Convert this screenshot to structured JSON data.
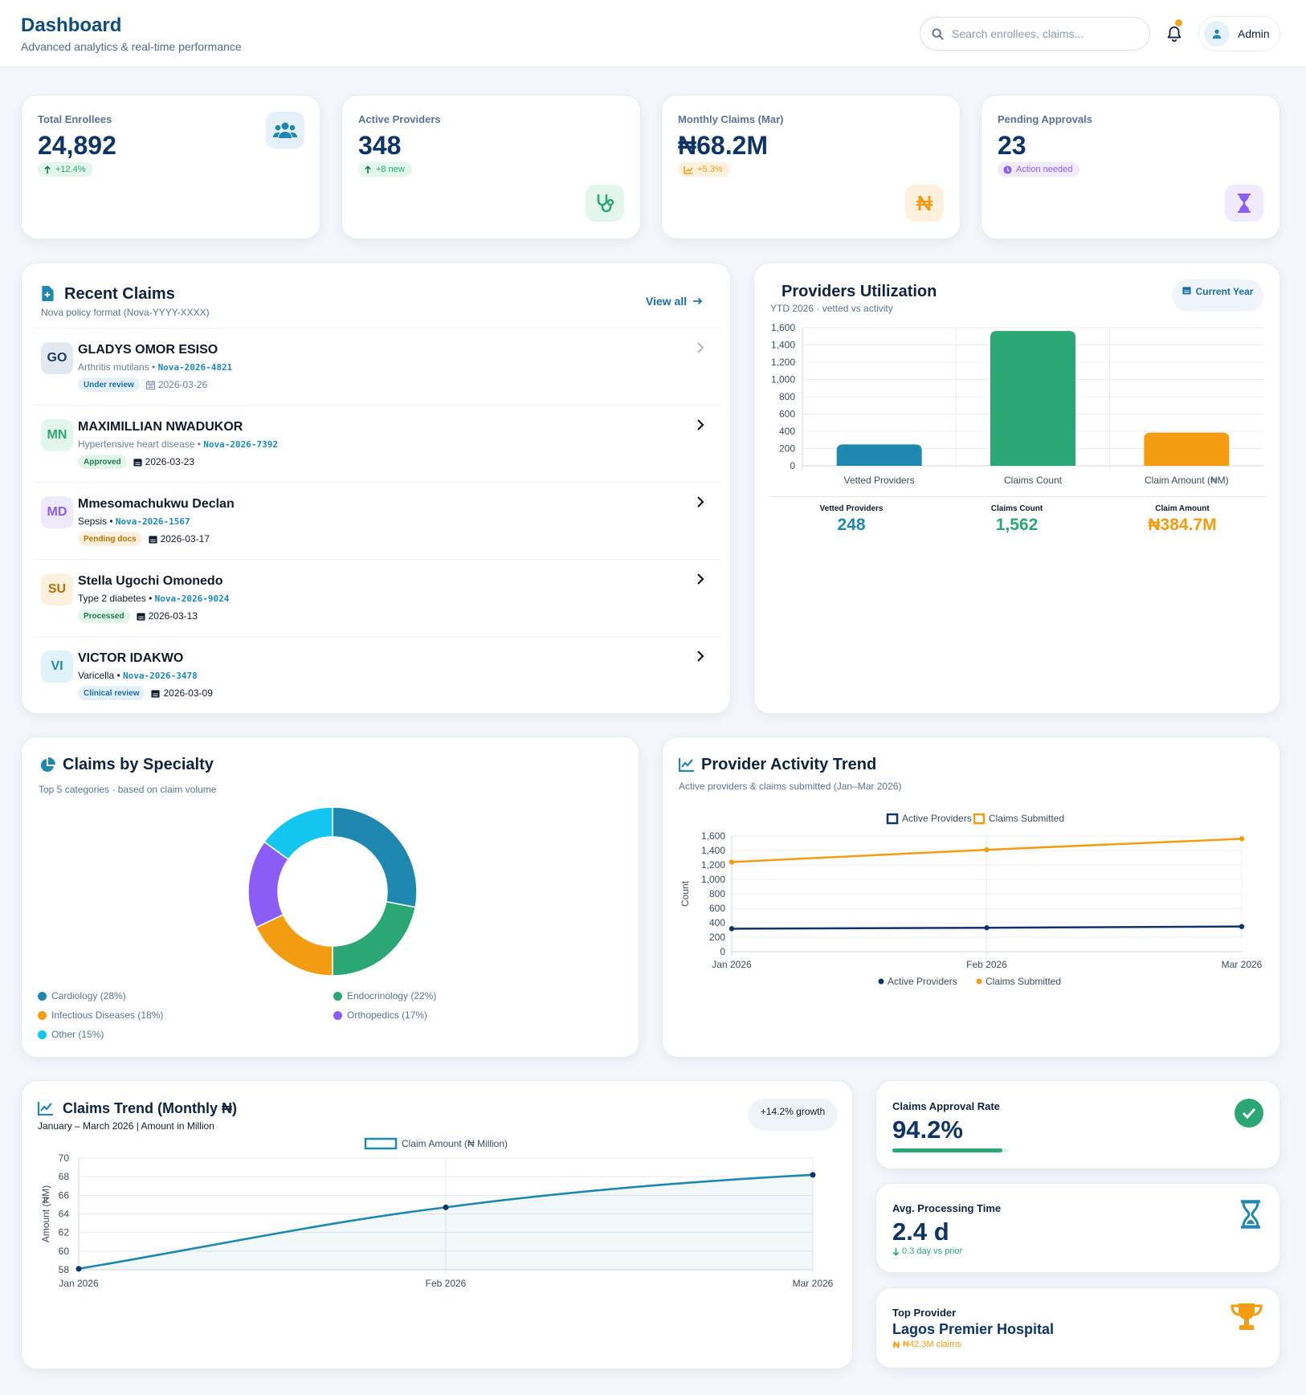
{
  "header": {
    "title": "Dashboard",
    "subtitle": "Advanced analytics & real-time performance",
    "search_placeholder": "Search enrollees, claims...",
    "user_label": "Admin"
  },
  "kpis": [
    {
      "label": "Total Enrollees",
      "value": "24,892",
      "badge": "+12.4%"
    },
    {
      "label": "Active Providers",
      "value": "348",
      "badge": "+8 new"
    },
    {
      "label": "Monthly Claims (Mar)",
      "value": "₦68.2M",
      "badge": "+5.3%"
    },
    {
      "label": "Pending Approvals",
      "value": "23",
      "badge": "Action needed"
    }
  ],
  "recent_claims": {
    "title": "Recent Claims",
    "subtitle": "Nova policy format (Nova-YYYY-XXXX)",
    "view_all": "View all",
    "items": [
      {
        "initials": "GO",
        "name": "GLADYS OMOR ESISO",
        "diagnosis": "Arthritis mutilans",
        "code": "Nova-2026-4821",
        "status": "Under review",
        "date": "2026-03-26"
      },
      {
        "initials": "MN",
        "name": "MAXIMILLIAN NWADUKOR",
        "diagnosis": "Hypertensive heart disease",
        "code": "Nova-2026-7392",
        "status": "Approved",
        "date": "2026-03-23"
      },
      {
        "initials": "MD",
        "name": "Mmesomachukwu Declan",
        "diagnosis": "Sepsis",
        "code": "Nova-2026-1567",
        "status": "Pending docs",
        "date": "2026-03-17"
      },
      {
        "initials": "SU",
        "name": "Stella Ugochi Omonedo",
        "diagnosis": "Type 2 diabetes",
        "code": "Nova-2026-9024",
        "status": "Processed",
        "date": "2026-03-13"
      },
      {
        "initials": "VI",
        "name": "VICTOR IDAKWO",
        "diagnosis": "Varicella",
        "code": "Nova-2026-3478",
        "status": "Clinical review",
        "date": "2026-03-09"
      }
    ]
  },
  "utilization": {
    "title": "Providers Utilization",
    "subtitle": "YTD 2026 · vetted vs activity",
    "filter_label": "Current Year",
    "stats": [
      {
        "label": "Vetted Providers",
        "value": "248",
        "color": "#1e88b0"
      },
      {
        "label": "Claims Count",
        "value": "1,562",
        "color": "#2aa775"
      },
      {
        "label": "Claim Amount",
        "value": "₦384.7M",
        "color": "#f39c12"
      }
    ]
  },
  "specialty": {
    "title": "Claims by Specialty",
    "subtitle": "Top 5 categories · based on claim volume",
    "legend": [
      {
        "label": "Cardiology (28%)",
        "color": "#1e88b0"
      },
      {
        "label": "Endocrinology (22%)",
        "color": "#2aa775"
      },
      {
        "label": "Infectious Diseases (18%)",
        "color": "#f39c12"
      },
      {
        "label": "Orthopedics (17%)",
        "color": "#8b5cf6"
      },
      {
        "label": "Other (15%)",
        "color": "#12c6f0"
      }
    ]
  },
  "activity": {
    "title": "Provider Activity Trend",
    "subtitle": "Active providers & claims submitted (Jan–Mar 2026)",
    "legend_bottom": [
      "Active Providers",
      "Claims Submitted"
    ]
  },
  "claims_trend": {
    "title": "Claims Trend (Monthly ₦)",
    "subtitle": "January – March 2026 | Amount in Million",
    "growth_badge": "+14.2% growth"
  },
  "side_cards": {
    "approval_label": "Claims Approval Rate",
    "approval_value": "94.2%",
    "approval_fraction": 0.942,
    "processing_label": "Avg. Processing Time",
    "processing_value": "2.4 d",
    "processing_delta": "0.3 day vs prior",
    "top_label": "Top Provider",
    "top_name": "Lagos Premier Hospital",
    "top_amount": "₦42.3M claims"
  },
  "chart_data": [
    {
      "type": "bar",
      "categories": [
        "Vetted Providers",
        "Claims Count",
        "Claim Amount (₦M)"
      ],
      "values": [
        248,
        1562,
        384.7
      ],
      "colors": [
        "#1e88b0",
        "#2aa775",
        "#f39c12"
      ],
      "ylim": [
        0,
        1600
      ],
      "yticks": [
        0,
        200,
        400,
        600,
        800,
        1000,
        1200,
        1400,
        1600
      ],
      "title": "Providers Utilization",
      "xlabel": "",
      "ylabel": ""
    },
    {
      "type": "pie",
      "categories": [
        "Cardiology",
        "Endocrinology",
        "Infectious Diseases",
        "Orthopedics",
        "Other"
      ],
      "values": [
        28,
        22,
        18,
        17,
        15
      ],
      "colors": [
        "#1e88b0",
        "#2aa775",
        "#f39c12",
        "#8b5cf6",
        "#12c6f0"
      ],
      "title": "Claims by Specialty"
    },
    {
      "type": "line",
      "title": "Provider Activity Trend",
      "x": [
        "Jan 2026",
        "Feb 2026",
        "Mar 2026"
      ],
      "series": [
        {
          "name": "Active Providers",
          "values": [
            318,
            331,
            348
          ],
          "color": "#0f3468"
        },
        {
          "name": "Claims Submitted",
          "values": [
            1240,
            1410,
            1562
          ],
          "color": "#f39c12"
        }
      ],
      "ylim": [
        0,
        1600
      ],
      "yticks": [
        0,
        200,
        400,
        600,
        800,
        1000,
        1200,
        1400,
        1600
      ],
      "ylabel": "Count",
      "xlabel": ""
    },
    {
      "type": "area",
      "title": "Claims Trend (Monthly ₦)",
      "x": [
        "Jan 2026",
        "Feb 2026",
        "Mar 2026"
      ],
      "series": [
        {
          "name": "Claim Amount (₦ Million)",
          "values": [
            58.1,
            64.7,
            68.2
          ],
          "color": "#1e88b0"
        }
      ],
      "ylim": [
        58,
        70
      ],
      "yticks": [
        58,
        60,
        62,
        64,
        66,
        68,
        70
      ],
      "ylabel": "Amount (₦M)",
      "xlabel": ""
    }
  ]
}
